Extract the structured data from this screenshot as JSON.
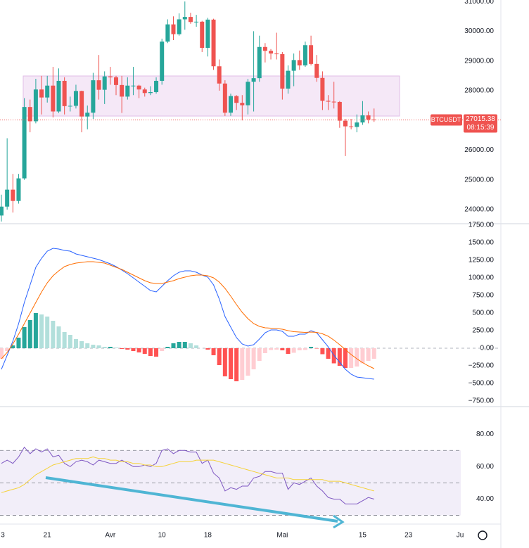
{
  "chart_data": [
    {
      "type": "candlestick",
      "symbol": "BTCUSDT",
      "countdown": "08:15:39",
      "up_color": "#26a69a",
      "down_color": "#ef5350",
      "ylim": [
        23525,
        31050
      ],
      "yticks": [
        {
          "value": 31000,
          "label": "31000.00"
        },
        {
          "value": 30000,
          "label": "30000.00"
        },
        {
          "value": 29000,
          "label": "29000.00"
        },
        {
          "value": 28000,
          "label": "28000.00"
        },
        {
          "value": 27000,
          "label": "27000.00"
        },
        {
          "value": 26000,
          "label": "26000.00"
        },
        {
          "value": 25000,
          "label": "25000.00"
        },
        {
          "value": 24000,
          "label": "24000.00"
        }
      ],
      "open": [
        23800,
        24100,
        24670,
        24290,
        25050,
        27450,
        26970,
        28040,
        27770,
        28170,
        27300,
        28330,
        27480,
        27490,
        27990,
        27130,
        27260,
        28350,
        28030,
        28480,
        28450,
        28190,
        27800,
        28170,
        28170,
        28040,
        27920,
        27950,
        28330,
        29650,
        30230,
        29900,
        30400,
        30480,
        30310,
        30320,
        29440,
        30390,
        28820,
        28240,
        27260,
        27820,
        27590,
        27510,
        28300,
        28420,
        29470,
        29340,
        29250,
        29230,
        28070,
        28670,
        29030,
        28850,
        29530,
        28900,
        28430,
        27660,
        27630,
        27620,
        26990,
        26800,
        26780,
        26930,
        27170,
        27030
      ],
      "high": [
        24500,
        26400,
        25200,
        25200,
        27750,
        27700,
        28400,
        28500,
        28500,
        28800,
        28750,
        28450,
        27800,
        28200,
        28000,
        27500,
        28600,
        29200,
        28650,
        28800,
        28500,
        28500,
        28450,
        28800,
        28200,
        28100,
        28150,
        28450,
        29750,
        30400,
        30500,
        30600,
        31000,
        30620,
        30550,
        30350,
        30450,
        30420,
        29050,
        28350,
        27900,
        27850,
        27850,
        28400,
        30000,
        29850,
        29600,
        29400,
        29950,
        29300,
        28850,
        29250,
        29350,
        29650,
        29850,
        29200,
        28650,
        27850,
        28300,
        27650,
        27050,
        27050,
        27200,
        27650,
        27300,
        27400
      ],
      "low": [
        23600,
        24000,
        23900,
        24200,
        25000,
        26600,
        26900,
        27200,
        27600,
        27100,
        27250,
        27200,
        27300,
        27400,
        26600,
        26700,
        27050,
        27700,
        27550,
        28200,
        27850,
        27250,
        27700,
        27850,
        27750,
        27800,
        27850,
        27900,
        28200,
        29600,
        29700,
        29850,
        30050,
        30250,
        30150,
        29300,
        29150,
        28700,
        28000,
        27150,
        27150,
        27350,
        27000,
        27200,
        27300,
        28300,
        28950,
        29050,
        29050,
        27700,
        27900,
        28150,
        28700,
        28800,
        28850,
        28300,
        27350,
        27350,
        27400,
        26750,
        25800,
        26700,
        26600,
        26850,
        26900,
        26950
      ],
      "close": [
        24100,
        24670,
        24290,
        25050,
        27450,
        26970,
        28040,
        27770,
        28170,
        27300,
        28330,
        27480,
        27490,
        27990,
        27130,
        27260,
        28350,
        28030,
        28480,
        28450,
        28190,
        27800,
        28170,
        28170,
        28040,
        27920,
        27950,
        28330,
        29650,
        30230,
        29900,
        30400,
        30480,
        30310,
        30320,
        29440,
        30390,
        28820,
        28240,
        27260,
        27820,
        27590,
        27510,
        28300,
        28420,
        29470,
        29340,
        29250,
        29230,
        28070,
        28670,
        29030,
        28850,
        29530,
        28900,
        28430,
        27660,
        27630,
        27620,
        26990,
        26800,
        26780,
        26930,
        27170,
        27030,
        27015.38
      ]
    },
    {
      "type": "macd",
      "ylim": [
        -830,
        1770
      ],
      "yticks": [
        {
          "value": 1750,
          "label": "1750.00"
        },
        {
          "value": 1500,
          "label": "1500.00"
        },
        {
          "value": 1250,
          "label": "1250.00"
        },
        {
          "value": 1000,
          "label": "1000.00"
        },
        {
          "value": 750,
          "label": "750.00"
        },
        {
          "value": 500,
          "label": "500.00"
        },
        {
          "value": 250,
          "label": "250.00"
        },
        {
          "value": 0,
          "label": "0.00"
        },
        {
          "value": -250,
          "label": "−250.00"
        },
        {
          "value": -500,
          "label": "−500.00"
        },
        {
          "value": -750,
          "label": "−750.00"
        }
      ],
      "histogram_colors": [
        "#26a69a",
        "#b2dfdb",
        "#ffcdd2",
        "#ff5252"
      ],
      "histogram": [
        -150,
        -40,
        40,
        150,
        300,
        400,
        500,
        480,
        450,
        390,
        310,
        230,
        190,
        130,
        100,
        70,
        50,
        40,
        20,
        20,
        10,
        -10,
        -20,
        -40,
        -60,
        -80,
        -110,
        -120,
        -40,
        20,
        70,
        90,
        90,
        70,
        40,
        0,
        -20,
        -100,
        -240,
        -400,
        -440,
        -470,
        -450,
        -390,
        -300,
        -180,
        -70,
        -25,
        -20,
        -30,
        -80,
        -65,
        -30,
        -25,
        20,
        -5,
        -85,
        -150,
        -215,
        -250,
        -280,
        -280,
        -260,
        -215,
        -180,
        -150
      ],
      "series": [
        {
          "color": "#2962ff",
          "values": [
            -300,
            -100,
            100,
            350,
            650,
            900,
            1150,
            1280,
            1380,
            1420,
            1410,
            1390,
            1380,
            1340,
            1320,
            1300,
            1280,
            1260,
            1230,
            1200,
            1160,
            1110,
            1060,
            1000,
            940,
            880,
            820,
            800,
            880,
            960,
            1030,
            1080,
            1100,
            1100,
            1080,
            1040,
            1010,
            900,
            700,
            450,
            300,
            150,
            60,
            30,
            50,
            130,
            220,
            260,
            260,
            240,
            170,
            170,
            200,
            200,
            250,
            220,
            120,
            20,
            -100,
            -200,
            -300,
            -370,
            -410,
            -420,
            -430,
            -440
          ]
        },
        {
          "color": "#ff6d00",
          "values": [
            -150,
            -60,
            60,
            200,
            350,
            500,
            650,
            800,
            930,
            1030,
            1100,
            1160,
            1190,
            1210,
            1220,
            1230,
            1230,
            1220,
            1210,
            1180,
            1150,
            1120,
            1080,
            1040,
            1000,
            960,
            930,
            920,
            920,
            940,
            960,
            990,
            1010,
            1030,
            1040,
            1040,
            1030,
            1000,
            940,
            850,
            740,
            620,
            510,
            420,
            350,
            310,
            290,
            285,
            280,
            270,
            250,
            235,
            230,
            225,
            230,
            225,
            205,
            170,
            115,
            50,
            -20,
            -90,
            -150,
            -205,
            -250,
            -290
          ]
        }
      ]
    },
    {
      "type": "rsi",
      "ylim": [
        24.6,
        97
      ],
      "yticks": [
        {
          "value": 80,
          "label": "80.00"
        },
        {
          "value": 60,
          "label": "60.00"
        },
        {
          "value": 40,
          "label": "40.00"
        }
      ],
      "levels": [
        70,
        50,
        30
      ],
      "band_color": "#7e57c2",
      "series": [
        {
          "color": "#7e57c2",
          "values": [
            62,
            64,
            62,
            66,
            72,
            68,
            71,
            69,
            71,
            66,
            67,
            62,
            60,
            63,
            64,
            63,
            61,
            64,
            63,
            62,
            62,
            64,
            62,
            60,
            60,
            61,
            60,
            62,
            70,
            71,
            68,
            70,
            70,
            69,
            69,
            62,
            64,
            56,
            53,
            45,
            47,
            46,
            48,
            48,
            53,
            54,
            57,
            57,
            56,
            56,
            46,
            50,
            49,
            51,
            53,
            48,
            45,
            41,
            40,
            40,
            37,
            37,
            37,
            39,
            41,
            40
          ]
        },
        {
          "color": "#f5d238",
          "values": [
            44,
            45,
            46,
            47,
            49,
            52,
            55,
            57,
            59,
            61,
            62,
            63,
            64,
            65,
            65,
            65,
            66,
            65,
            65,
            64,
            64,
            63,
            63,
            62,
            62,
            61,
            61,
            60,
            60,
            61,
            62,
            63,
            63,
            63,
            64,
            64,
            64,
            64,
            63,
            62,
            61,
            60,
            59,
            58,
            57,
            56,
            55,
            54,
            53,
            53,
            53,
            52,
            52,
            52,
            52,
            52,
            52,
            51,
            51,
            51,
            50,
            49,
            48,
            47,
            46,
            45
          ]
        }
      ],
      "xticks": [
        {
          "value": 0,
          "label": "3"
        },
        {
          "value": 8,
          "label": "21"
        },
        {
          "value": 19,
          "label": "Avr"
        },
        {
          "value": 28,
          "label": "10"
        },
        {
          "value": 36,
          "label": "18"
        },
        {
          "value": 49,
          "label": "Mai"
        },
        {
          "value": 63,
          "label": "15"
        },
        {
          "value": 71,
          "label": "23"
        },
        {
          "value": 80,
          "label": "Ju"
        }
      ]
    }
  ]
}
